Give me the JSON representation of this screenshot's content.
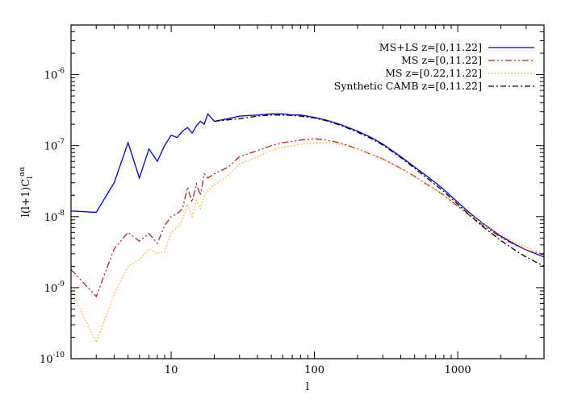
{
  "chart_data": {
    "type": "line",
    "xlabel": "l",
    "ylabel_base": "l(l+1)C",
    "ylabel_sub": "l",
    "ylabel_sup": "αα",
    "xscale": "log",
    "yscale": "log",
    "xlim": [
      2,
      4000
    ],
    "ylim": [
      1e-10,
      5e-06
    ],
    "x_ticks": [
      {
        "value": 10,
        "label": "10"
      },
      {
        "value": 100,
        "label": "100"
      },
      {
        "value": 1000,
        "label": "1000"
      }
    ],
    "y_ticks": [
      {
        "value": 1e-10,
        "base": "10",
        "exp": "-10"
      },
      {
        "value": 1e-09,
        "base": "10",
        "exp": "-9"
      },
      {
        "value": 1e-08,
        "base": "10",
        "exp": "-8"
      },
      {
        "value": 1e-07,
        "base": "10",
        "exp": "-7"
      },
      {
        "value": 1e-06,
        "base": "10",
        "exp": "-6"
      }
    ],
    "grid": false,
    "legend_position": "top-right",
    "series": [
      {
        "name": "MS+LS z=[0,11.22]",
        "color": "#0000cc",
        "dash": "solid",
        "x": [
          2,
          3,
          4,
          5,
          6,
          7,
          8,
          9,
          10,
          11,
          12,
          13,
          14,
          15,
          16,
          17,
          18,
          20,
          25,
          30,
          40,
          50,
          60,
          70,
          80,
          100,
          120,
          150,
          200,
          250,
          300,
          400,
          500,
          600,
          700,
          800,
          1000,
          1200,
          1500,
          2000,
          2500,
          3000,
          4000
        ],
        "y": [
          1.2e-08,
          1.15e-08,
          3e-08,
          1.1e-07,
          3.5e-08,
          9e-08,
          6e-08,
          1e-07,
          1.4e-07,
          1.3e-07,
          1.6e-07,
          1.8e-07,
          1.5e-07,
          1.9e-07,
          2.2e-07,
          2e-07,
          2.8e-07,
          2.2e-07,
          2.4e-07,
          2.6e-07,
          2.7e-07,
          2.8e-07,
          2.8e-07,
          2.7e-07,
          2.7e-07,
          2.5e-07,
          2.3e-07,
          2e-07,
          1.6e-07,
          1.3e-07,
          1.05e-07,
          7e-08,
          5e-08,
          3.8e-08,
          3e-08,
          2.4e-08,
          1.6e-08,
          1.15e-08,
          8e-09,
          5.3e-09,
          4.1e-09,
          3.4e-09,
          2.7e-09
        ]
      },
      {
        "name": "MS z=[0,11.22]",
        "color": "#b22222",
        "dash": "dash-dot-dot",
        "x": [
          2,
          3,
          4,
          5,
          6,
          7,
          8,
          9,
          10,
          11,
          12,
          13,
          14,
          15,
          16,
          17,
          18,
          20,
          25,
          30,
          40,
          50,
          60,
          70,
          80,
          100,
          120,
          150,
          200,
          250,
          300,
          400,
          500,
          600,
          700,
          800,
          1000,
          1200,
          1500,
          2000,
          2500,
          3000,
          4000
        ],
        "y": [
          1.8e-09,
          7.5e-10,
          3.5e-09,
          6e-09,
          4.5e-09,
          5.8e-09,
          4.2e-09,
          7.5e-09,
          1e-08,
          1.1e-08,
          1.3e-08,
          2.6e-08,
          1.6e-08,
          2.9e-08,
          2e-08,
          4e-08,
          3.5e-08,
          4e-08,
          5e-08,
          7e-08,
          8.5e-08,
          1e-07,
          1.1e-07,
          1.15e-07,
          1.2e-07,
          1.25e-07,
          1.2e-07,
          1.1e-07,
          9e-08,
          7.5e-08,
          6.5e-08,
          4.8e-08,
          3.7e-08,
          2.9e-08,
          2.4e-08,
          2e-08,
          1.4e-08,
          1.05e-08,
          7.5e-09,
          5.1e-09,
          4e-09,
          3.4e-09,
          2.9e-09
        ]
      },
      {
        "name": "MS z=[0.22,11.22]",
        "color": "#ffa500",
        "dash": "dot",
        "x": [
          2,
          3,
          4,
          5,
          6,
          7,
          8,
          9,
          10,
          11,
          12,
          13,
          14,
          15,
          16,
          17,
          18,
          20,
          25,
          30,
          40,
          50,
          60,
          70,
          80,
          100,
          120,
          150,
          200,
          250,
          300,
          400,
          500,
          600,
          700,
          800,
          1000,
          1200,
          1500,
          2000,
          2500,
          3000,
          4000
        ],
        "y": [
          9e-10,
          1.7e-10,
          8e-10,
          2e-09,
          2.5e-09,
          3.5e-09,
          3e-09,
          3.2e-09,
          6e-09,
          7e-09,
          9e-09,
          1.5e-08,
          1e-08,
          1.7e-08,
          1.3e-08,
          2e-08,
          2.3e-08,
          2.8e-08,
          3.8e-08,
          5.5e-08,
          7e-08,
          8.5e-08,
          9.5e-08,
          1e-07,
          1.05e-07,
          1.1e-07,
          1.1e-07,
          1.05e-07,
          9e-08,
          7.5e-08,
          6.5e-08,
          4.8e-08,
          3.7e-08,
          2.9e-08,
          2.4e-08,
          2e-08,
          1.45e-08,
          1.1e-08,
          7.9e-09,
          5.5e-09,
          4.4e-09,
          3.7e-09,
          3e-09
        ]
      },
      {
        "name": "Synthetic CAMB z=[0,11.22]",
        "color": "#000000",
        "dash": "dash-dot",
        "x": [
          20,
          30,
          40,
          50,
          60,
          70,
          80,
          100,
          120,
          150,
          200,
          250,
          300,
          400,
          500,
          600,
          700,
          800,
          1000,
          1200,
          1500,
          2000,
          2500,
          3000,
          4000
        ],
        "y": [
          2.2e-07,
          2.4e-07,
          2.6e-07,
          2.7e-07,
          2.7e-07,
          2.65e-07,
          2.6e-07,
          2.45e-07,
          2.25e-07,
          1.95e-07,
          1.55e-07,
          1.25e-07,
          1.02e-07,
          6.8e-08,
          4.8e-08,
          3.6e-08,
          2.8e-08,
          2.25e-08,
          1.5e-08,
          1.07e-08,
          7.2e-09,
          4.6e-09,
          3.4e-09,
          2.7e-09,
          2e-09
        ]
      }
    ]
  }
}
